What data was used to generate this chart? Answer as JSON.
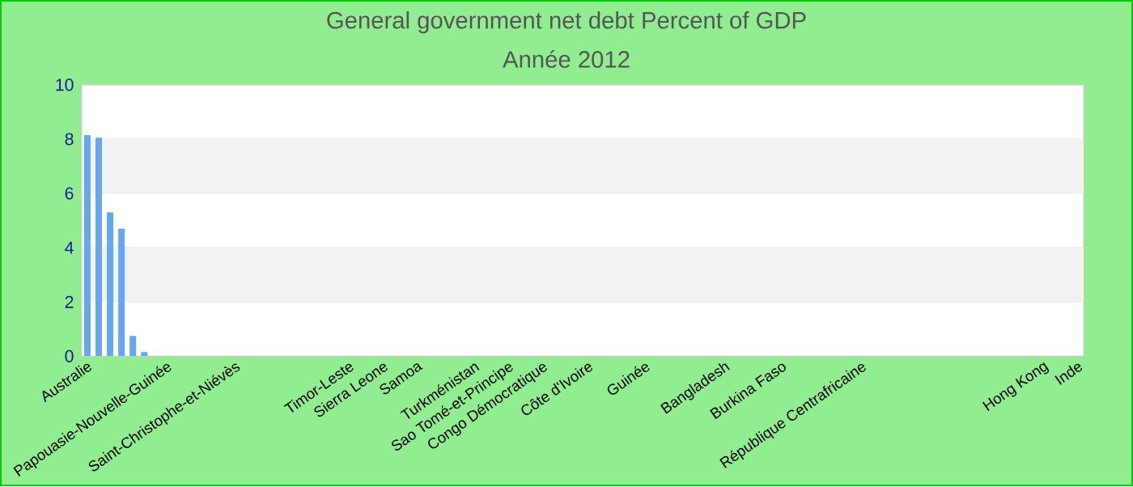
{
  "chart_data": {
    "type": "bar",
    "title": "General government net debt  Percent of GDP",
    "subtitle": "Année 2012",
    "categories": [
      "Australie",
      null,
      null,
      null,
      null,
      null,
      null,
      "Papouasie-Nouvelle-Guinée",
      null,
      null,
      null,
      null,
      null,
      "Saint-Christophe-et-Niévès",
      null,
      null,
      null,
      null,
      null,
      null,
      null,
      null,
      null,
      "Timor-Leste",
      null,
      null,
      "Sierra Leone",
      null,
      null,
      "Samoa",
      null,
      null,
      null,
      null,
      "Turkménistan",
      null,
      null,
      "Sao Tomé-et-Principe",
      null,
      null,
      "Congo Démocratique",
      null,
      null,
      null,
      "Côte d'Ivoire",
      null,
      null,
      null,
      null,
      "Guinée",
      null,
      null,
      null,
      null,
      null,
      null,
      "Bangladesh",
      null,
      null,
      null,
      null,
      "Burkina Faso",
      null,
      null,
      null,
      null,
      null,
      null,
      "République Centrafricaine",
      null,
      null,
      null,
      null,
      null,
      null,
      null,
      null,
      null,
      null,
      null,
      null,
      null,
      null,
      null,
      "Hong Kong",
      null,
      null,
      "Inde"
    ],
    "values": [
      8.15,
      8.05,
      5.3,
      4.7,
      0.75,
      0.15,
      null,
      null,
      null,
      null,
      null,
      null,
      null,
      null,
      null,
      null,
      null,
      null,
      null,
      null,
      null,
      null,
      null,
      null,
      null,
      null,
      null,
      null,
      null,
      null,
      null,
      null,
      null,
      null,
      null,
      null,
      null,
      null,
      null,
      null,
      null,
      null,
      null,
      null,
      null,
      null,
      null,
      null,
      null,
      null,
      null,
      null,
      null,
      null,
      null,
      null,
      null,
      null,
      null,
      null,
      null,
      null,
      null,
      null,
      null,
      null,
      null,
      null,
      null,
      null,
      null,
      null,
      null,
      null,
      null,
      null,
      null,
      null,
      null,
      null,
      null,
      null,
      null,
      null,
      null,
      null,
      null,
      null
    ],
    "color": "#64a8f0",
    "ylim": [
      0,
      10
    ],
    "yticks": [
      0,
      2,
      4,
      6,
      8,
      10
    ],
    "grid": "y"
  }
}
